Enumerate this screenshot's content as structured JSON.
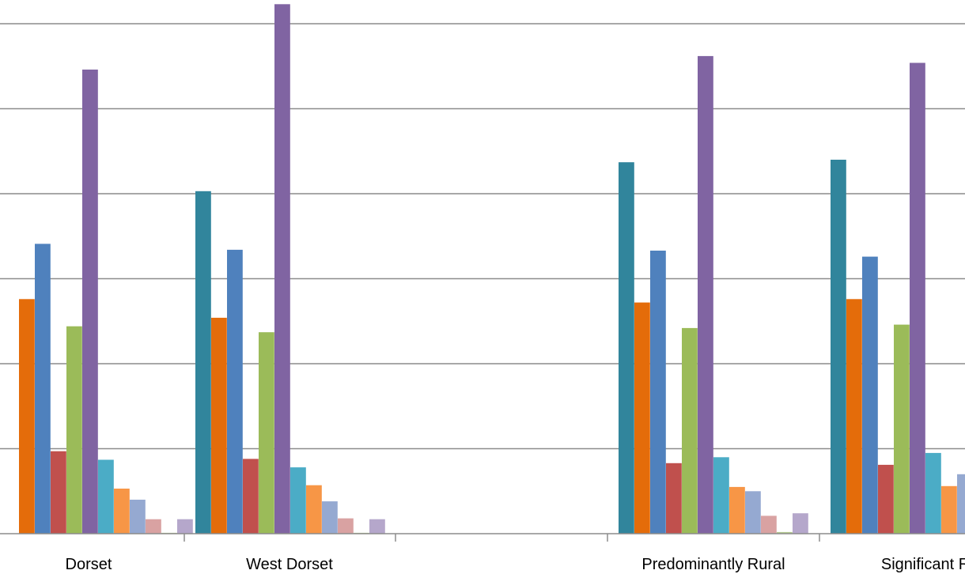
{
  "chart_data": {
    "type": "bar",
    "title": "",
    "xlabel": "",
    "ylabel": "",
    "ylim": [
      0,
      6.3
    ],
    "grid": true,
    "legend": "none",
    "categories": [
      "Dorset",
      "West Dorset",
      "",
      "Predominantly Rural",
      "Significant R"
    ],
    "series": [
      {
        "color": "#31859C",
        "values": [
          null,
          4.03,
          null,
          4.37,
          4.4
        ]
      },
      {
        "color": "#E46C0A",
        "values": [
          2.76,
          2.54,
          null,
          2.72,
          2.76
        ]
      },
      {
        "color": "#4F81BD",
        "values": [
          3.41,
          3.34,
          null,
          3.33,
          3.26
        ]
      },
      {
        "color": "#C0504D",
        "values": [
          0.97,
          0.88,
          null,
          0.83,
          0.81
        ]
      },
      {
        "color": "#9BBB59",
        "values": [
          2.44,
          2.37,
          null,
          2.42,
          2.46
        ]
      },
      {
        "color": "#8064A2",
        "values": [
          5.46,
          6.23,
          null,
          5.62,
          5.54
        ]
      },
      {
        "color": "#4BACC6",
        "values": [
          0.87,
          0.78,
          null,
          0.9,
          0.95
        ]
      },
      {
        "color": "#F79646",
        "values": [
          0.53,
          0.57,
          null,
          0.55,
          0.56
        ]
      },
      {
        "color": "#95A9D1",
        "values": [
          0.4,
          0.38,
          null,
          0.5,
          0.7
        ]
      },
      {
        "color": "#D9A2A2",
        "values": [
          0.17,
          0.18,
          null,
          0.21,
          null
        ]
      },
      {
        "color": "#B3C98F",
        "values": [
          0.01,
          0.01,
          null,
          0.02,
          null
        ]
      },
      {
        "color": "#B5A7CB",
        "values": [
          0.17,
          0.17,
          null,
          0.24,
          null
        ]
      }
    ]
  }
}
